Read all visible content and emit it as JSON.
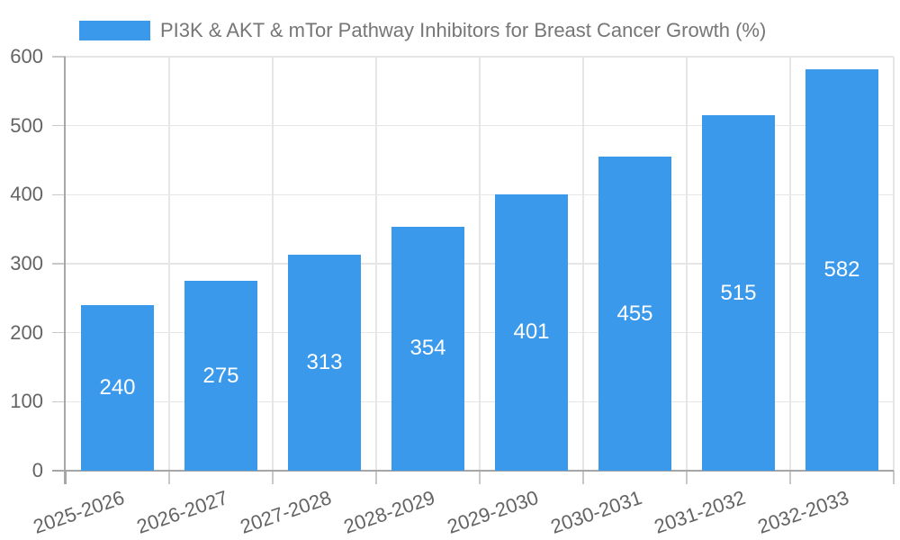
{
  "chart_data": {
    "type": "bar",
    "title": "PI3K & AKT & mTor Pathway Inhibitors for Breast Cancer Growth (%)",
    "categories": [
      "2025-2026",
      "2026-2027",
      "2027-2028",
      "2028-2029",
      "2029-2030",
      "2030-2031",
      "2031-2032",
      "2032-2033"
    ],
    "values": [
      240,
      275,
      313,
      354,
      401,
      455,
      515,
      582
    ],
    "value_labels": [
      "240",
      "275",
      "313",
      "354",
      "401",
      "455",
      "515",
      "582"
    ],
    "ylim": [
      0,
      600
    ],
    "yticks": [
      0,
      100,
      200,
      300,
      400,
      500,
      600
    ],
    "grid": true,
    "legend_position": "top",
    "colors": {
      "bar": "#3b99ec",
      "grid": "#e6e6e6",
      "tick": "#c8c8c8",
      "axis": "#a6a6a6",
      "axis_text": "#646464",
      "title_text": "#767676",
      "value_label": "#ffffff",
      "background": "#ffffff"
    }
  }
}
